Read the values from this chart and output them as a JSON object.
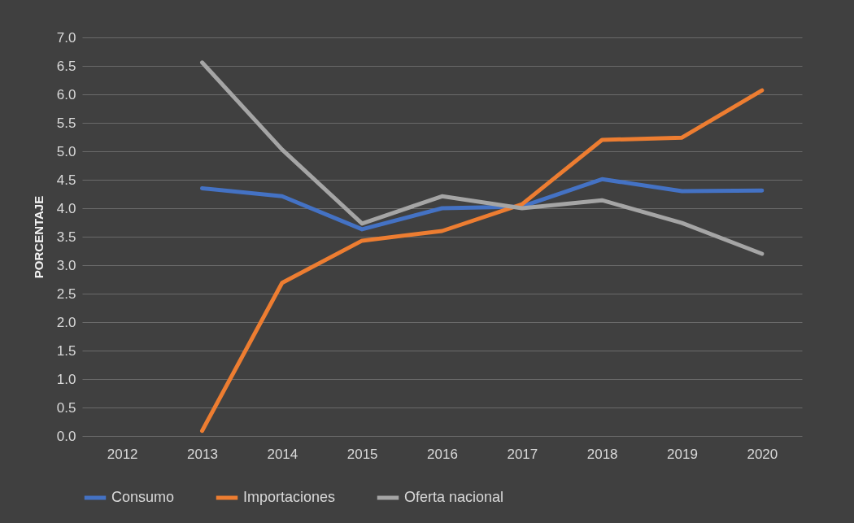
{
  "chart_data": {
    "type": "line",
    "ylabel": "PORCENTAJE",
    "categories": [
      "2012",
      "2013",
      "2014",
      "2015",
      "2016",
      "2017",
      "2018",
      "2019",
      "2020"
    ],
    "series": [
      {
        "name": "Consumo",
        "color": "#4472c4",
        "values": [
          null,
          4.35,
          4.21,
          3.63,
          4.0,
          4.03,
          4.51,
          4.3,
          4.31
        ]
      },
      {
        "name": "Importaciones",
        "color": "#ed7d31",
        "values": [
          null,
          0.09,
          2.69,
          3.43,
          3.6,
          4.07,
          5.2,
          5.24,
          6.07
        ]
      },
      {
        "name": "Oferta nacional",
        "color": "#a5a5a5",
        "values": [
          null,
          6.56,
          5.03,
          3.73,
          4.21,
          4.0,
          4.14,
          3.74,
          3.2
        ]
      }
    ],
    "ylim": [
      0,
      7
    ],
    "yticks": [
      {
        "value": 0,
        "label": "0.0"
      },
      {
        "value": 0.5,
        "label": "0.5"
      },
      {
        "value": 1,
        "label": "1.0"
      },
      {
        "value": 1.5,
        "label": "1.5"
      },
      {
        "value": 2,
        "label": "2.0"
      },
      {
        "value": 2.5,
        "label": "2.5"
      },
      {
        "value": 3,
        "label": "3.0"
      },
      {
        "value": 3.5,
        "label": "3.5"
      },
      {
        "value": 4,
        "label": "4.0"
      },
      {
        "value": 4.5,
        "label": "4.5"
      },
      {
        "value": 5,
        "label": "5.0"
      },
      {
        "value": 5.5,
        "label": "5.5"
      },
      {
        "value": 6,
        "label": "6.0"
      },
      {
        "value": 6.5,
        "label": "6.5"
      },
      {
        "value": 7,
        "label": "7.0"
      }
    ],
    "grid": "y",
    "legend": "bottom",
    "marker": "none",
    "line_style": "solid"
  }
}
